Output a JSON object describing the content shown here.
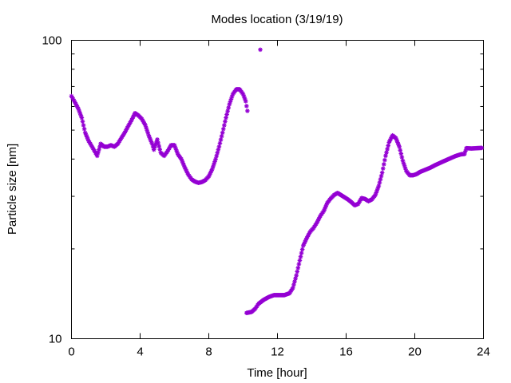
{
  "chart_data": {
    "type": "scatter",
    "title": "Modes location (3/19/19)",
    "xlabel": "Time [hour]",
    "ylabel": "Particle size [nm]",
    "xlim": [
      0,
      24
    ],
    "ylim": [
      10,
      100
    ],
    "yscale": "log",
    "grid": false,
    "legend": "none",
    "marker": "asterisk",
    "color": "#9400d3",
    "x_ticks": [
      {
        "value": 0,
        "label": "0"
      },
      {
        "value": 4,
        "label": "4"
      },
      {
        "value": 8,
        "label": "8"
      },
      {
        "value": 12,
        "label": "12"
      },
      {
        "value": 16,
        "label": "16"
      },
      {
        "value": 20,
        "label": "20"
      },
      {
        "value": 24,
        "label": "24"
      }
    ],
    "y_ticks": [
      {
        "value": 10,
        "label": "10"
      },
      {
        "value": 100,
        "label": "100"
      }
    ],
    "y_minor_ticks": [
      20,
      30,
      40,
      50,
      60,
      70,
      80,
      90
    ],
    "curve": [
      [
        0.0,
        65
      ],
      [
        0.2,
        62
      ],
      [
        0.4,
        59
      ],
      [
        0.6,
        55
      ],
      [
        0.8,
        49
      ],
      [
        1.0,
        46
      ],
      [
        1.2,
        44
      ],
      [
        1.4,
        42
      ],
      [
        1.5,
        41
      ],
      [
        1.7,
        45
      ],
      [
        1.9,
        44
      ],
      [
        2.1,
        44
      ],
      [
        2.3,
        44.5
      ],
      [
        2.5,
        44
      ],
      [
        2.7,
        45
      ],
      [
        2.9,
        47
      ],
      [
        3.1,
        49
      ],
      [
        3.3,
        51.5
      ],
      [
        3.5,
        54
      ],
      [
        3.7,
        57
      ],
      [
        3.9,
        56
      ],
      [
        4.1,
        54.5
      ],
      [
        4.3,
        52
      ],
      [
        4.5,
        48
      ],
      [
        4.7,
        45
      ],
      [
        4.8,
        43
      ],
      [
        5.0,
        46.5
      ],
      [
        5.2,
        42
      ],
      [
        5.4,
        41
      ],
      [
        5.6,
        42.5
      ],
      [
        5.8,
        44.5
      ],
      [
        6.0,
        44.5
      ],
      [
        6.2,
        41.5
      ],
      [
        6.4,
        40
      ],
      [
        6.6,
        37.5
      ],
      [
        6.8,
        35.5
      ],
      [
        7.0,
        34.2
      ],
      [
        7.2,
        33.6
      ],
      [
        7.4,
        33.3
      ],
      [
        7.6,
        33.5
      ],
      [
        7.8,
        34
      ],
      [
        8.0,
        35
      ],
      [
        8.2,
        37
      ],
      [
        8.4,
        40
      ],
      [
        8.6,
        44
      ],
      [
        8.8,
        49
      ],
      [
        9.0,
        55
      ],
      [
        9.2,
        61
      ],
      [
        9.4,
        66
      ],
      [
        9.6,
        68.5
      ],
      [
        9.8,
        68.5
      ],
      [
        10.0,
        66
      ],
      [
        10.15,
        62.5
      ],
      [
        10.25,
        58
      ]
    ],
    "outlier": [
      11.0,
      93
    ],
    "curve2": [
      [
        10.2,
        12.2
      ],
      [
        10.5,
        12.3
      ],
      [
        10.7,
        12.6
      ],
      [
        10.9,
        13.1
      ],
      [
        11.2,
        13.5
      ],
      [
        11.5,
        13.8
      ],
      [
        11.8,
        14
      ],
      [
        12.1,
        14
      ],
      [
        12.4,
        14
      ],
      [
        12.7,
        14.2
      ],
      [
        12.9,
        14.8
      ],
      [
        13.1,
        16.3
      ],
      [
        13.3,
        18.3
      ],
      [
        13.5,
        20.5
      ],
      [
        13.7,
        21.7
      ],
      [
        13.9,
        22.8
      ],
      [
        14.1,
        23.5
      ],
      [
        14.3,
        24.5
      ],
      [
        14.5,
        25.8
      ],
      [
        14.7,
        26.8
      ],
      [
        14.9,
        28.5
      ],
      [
        15.1,
        29.5
      ],
      [
        15.3,
        30.3
      ],
      [
        15.5,
        30.8
      ],
      [
        15.7,
        30.3
      ],
      [
        15.9,
        29.8
      ],
      [
        16.1,
        29.3
      ],
      [
        16.3,
        28.7
      ],
      [
        16.5,
        28
      ],
      [
        16.7,
        28.3
      ],
      [
        16.9,
        29.6
      ],
      [
        17.1,
        29.4
      ],
      [
        17.3,
        28.9
      ],
      [
        17.5,
        29.3
      ],
      [
        17.7,
        30.3
      ],
      [
        17.9,
        32.5
      ],
      [
        18.1,
        36
      ],
      [
        18.3,
        41
      ],
      [
        18.5,
        45.5
      ],
      [
        18.7,
        48
      ],
      [
        18.9,
        47
      ],
      [
        19.1,
        44
      ],
      [
        19.3,
        39.5
      ],
      [
        19.5,
        36.5
      ],
      [
        19.7,
        35.3
      ],
      [
        19.9,
        35.3
      ],
      [
        20.1,
        35.6
      ],
      [
        20.3,
        36.2
      ],
      [
        20.6,
        36.8
      ],
      [
        20.9,
        37.4
      ],
      [
        21.2,
        38.2
      ],
      [
        21.5,
        38.9
      ],
      [
        21.8,
        39.6
      ],
      [
        22.1,
        40.3
      ],
      [
        22.4,
        41
      ],
      [
        22.7,
        41.5
      ],
      [
        22.9,
        41.6
      ],
      [
        23.0,
        43.5
      ],
      [
        23.3,
        43.4
      ],
      [
        23.6,
        43.5
      ],
      [
        23.9,
        43.6
      ]
    ]
  }
}
